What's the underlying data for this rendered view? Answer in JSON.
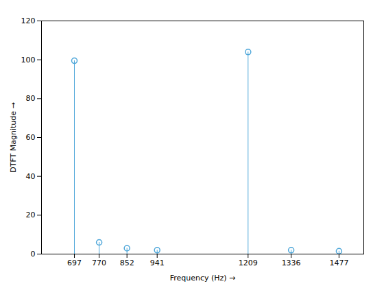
{
  "chart_data": {
    "type": "stem",
    "x": [
      697,
      770,
      852,
      941,
      1209,
      1336,
      1477
    ],
    "values": [
      99.5,
      6.0,
      3.0,
      2.0,
      104.0,
      2.0,
      1.5
    ],
    "xlabel": "Frequency (Hz)",
    "ylabel": "DTFT Magnitude",
    "xlim": [
      600,
      1550
    ],
    "xticks": [
      697,
      770,
      852,
      941,
      1209,
      1336,
      1477
    ],
    "ylim": [
      0,
      120
    ],
    "yticks": [
      0,
      20,
      40,
      60,
      80,
      100,
      120
    ],
    "color": "#4da6d9",
    "marker": "circle",
    "grid": false
  }
}
